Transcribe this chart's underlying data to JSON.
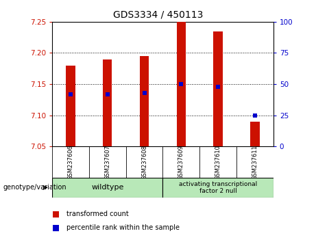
{
  "title": "GDS3334 / 450113",
  "samples": [
    "GSM237606",
    "GSM237607",
    "GSM237608",
    "GSM237609",
    "GSM237610",
    "GSM237611"
  ],
  "bar_bottom": 7.05,
  "bar_tops": [
    7.18,
    7.19,
    7.195,
    7.25,
    7.235,
    7.09
  ],
  "percentile_ranks": [
    42,
    42,
    43,
    50,
    48,
    25
  ],
  "ylim_left": [
    7.05,
    7.25
  ],
  "ylim_right": [
    0,
    100
  ],
  "yticks_left": [
    7.05,
    7.1,
    7.15,
    7.2,
    7.25
  ],
  "yticks_right": [
    0,
    25,
    50,
    75,
    100
  ],
  "bar_color": "#cc1100",
  "dot_color": "#0000cc",
  "background_color": "#d8d8d8",
  "plot_bg": "#ffffff",
  "group_labels": [
    "wildtype",
    "activating transcriptional\nfactor 2 null"
  ],
  "group_color": "#b8e8b8",
  "legend_items": [
    "transformed count",
    "percentile rank within the sample"
  ],
  "xlabel_label": "genotype/variation",
  "bar_width": 0.25
}
